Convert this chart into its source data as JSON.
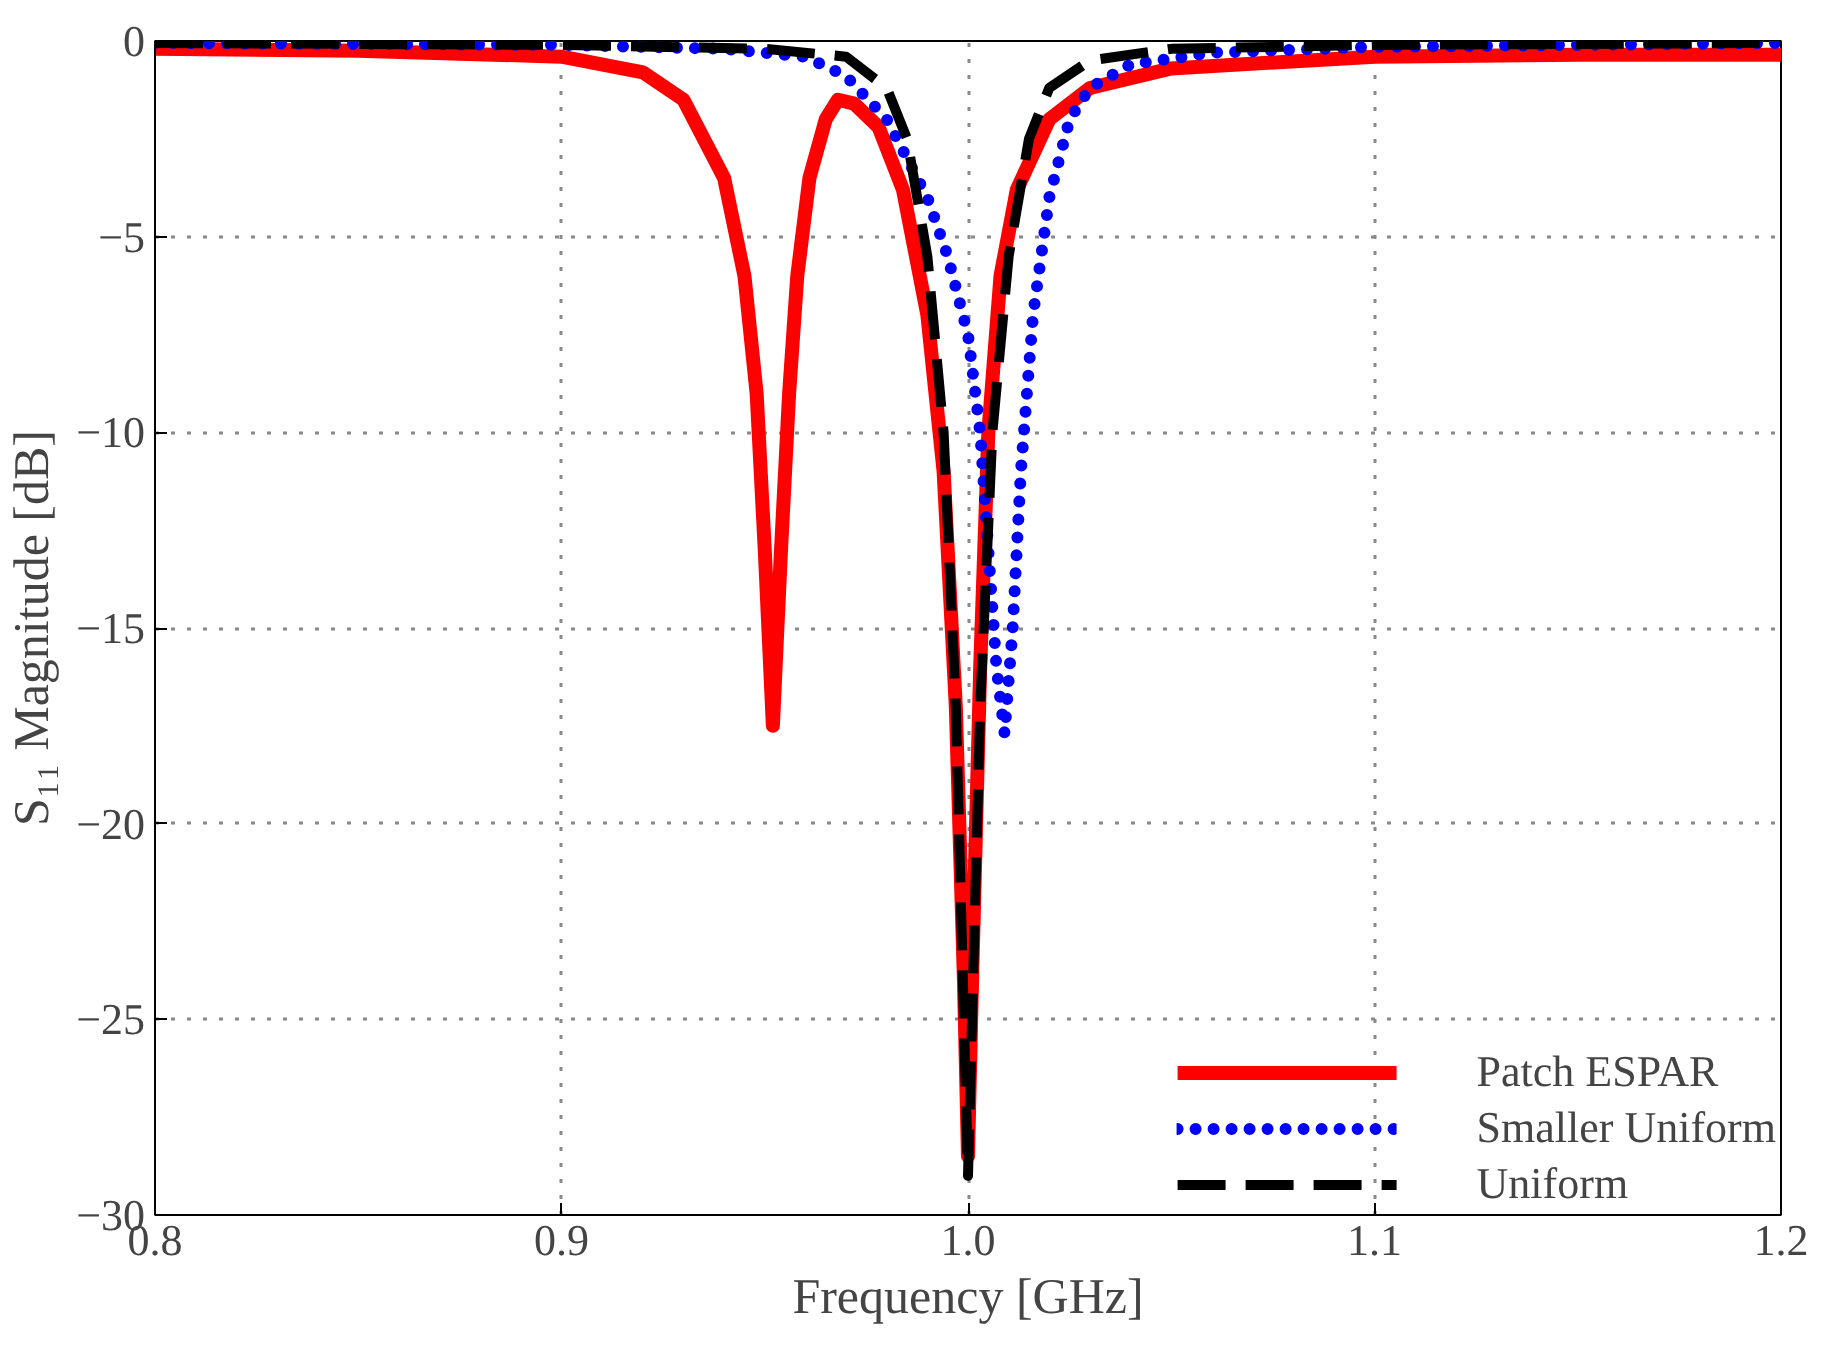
{
  "chart_data": {
    "type": "line",
    "xlabel": "Frequency [GHz]",
    "ylabel": "S₁₁ Magnitude [dB]",
    "xlim": [
      0.8,
      1.2
    ],
    "ylim": [
      -30,
      0
    ],
    "xticks": [
      0.8,
      0.9,
      {
        "value": 1.0,
        "label": "1.0"
      },
      1.1,
      1.2
    ],
    "yticks": [
      -30,
      -25,
      -20,
      -15,
      -10,
      -5,
      0
    ],
    "grid": true,
    "legend": "bottom right",
    "marker": "none",
    "series": [
      {
        "name": "Patch ESPAR",
        "color": "#ff0000",
        "line_style": "solid",
        "x": [
          0.8,
          0.85,
          0.9,
          0.92,
          0.93,
          0.94,
          0.945,
          0.948,
          0.95,
          0.952,
          0.954,
          0.956,
          0.958,
          0.961,
          0.965,
          0.968,
          0.972,
          0.978,
          0.984,
          0.99,
          0.994,
          0.997,
          0.999,
          1.0,
          1.001,
          1.003,
          1.005,
          1.008,
          1.012,
          1.02,
          1.03,
          1.05,
          1.1,
          1.15,
          1.2
        ],
        "values": [
          -0.2,
          -0.25,
          -0.4,
          -0.8,
          -1.5,
          -3.5,
          -6,
          -9,
          -13,
          -17.5,
          -13,
          -9,
          -6,
          -3.5,
          -2,
          -1.5,
          -1.6,
          -2.2,
          -3.8,
          -7,
          -11,
          -17,
          -24,
          -28.5,
          -24,
          -16,
          -10,
          -6,
          -3.8,
          -2,
          -1.2,
          -0.7,
          -0.4,
          -0.35,
          -0.35
        ]
      },
      {
        "name": "Smaller Uniform",
        "color": "#0000ff",
        "line_style": "dotted",
        "x": [
          0.8,
          0.9,
          0.94,
          0.96,
          0.97,
          0.98,
          0.99,
          0.995,
          1.0,
          1.003,
          1.005,
          1.007,
          1.009,
          1.011,
          1.013,
          1.016,
          1.02,
          1.025,
          1.03,
          1.04,
          1.06,
          1.1,
          1.2
        ],
        "values": [
          -0.05,
          -0.1,
          -0.2,
          -0.4,
          -0.9,
          -2,
          -4,
          -5.5,
          -7.5,
          -10,
          -13,
          -16,
          -17.7,
          -15,
          -11,
          -7,
          -4,
          -2,
          -1.2,
          -0.6,
          -0.3,
          -0.15,
          -0.05
        ]
      },
      {
        "name": "Uniform",
        "color": "#000000",
        "line_style": "dashed",
        "x": [
          0.8,
          0.9,
          0.95,
          0.97,
          0.98,
          0.985,
          0.99,
          0.994,
          0.997,
          0.999,
          1.0,
          1.001,
          1.003,
          1.006,
          1.01,
          1.015,
          1.02,
          1.03,
          1.05,
          1.1,
          1.2
        ],
        "values": [
          -0.05,
          -0.1,
          -0.2,
          -0.4,
          -1.2,
          -2.5,
          -5.5,
          -10,
          -17,
          -25,
          -29,
          -25,
          -17,
          -10,
          -5.5,
          -2.5,
          -1.2,
          -0.5,
          -0.2,
          -0.1,
          -0.05
        ]
      }
    ]
  }
}
